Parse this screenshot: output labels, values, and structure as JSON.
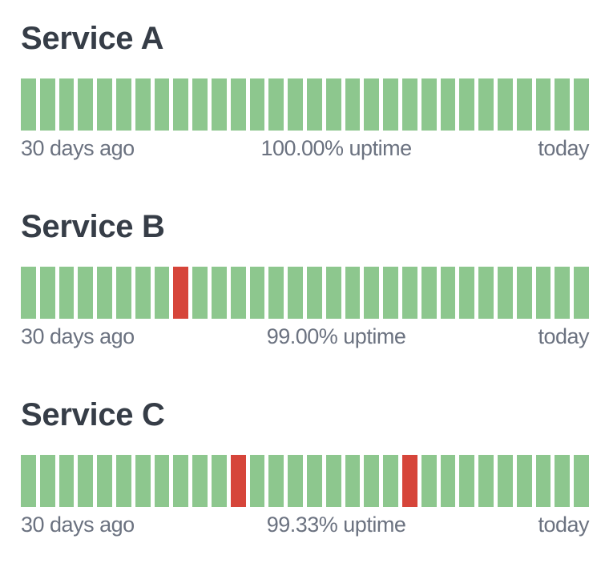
{
  "colors": {
    "up": "#8dc78e",
    "down": "#d6453a",
    "title": "#363d47",
    "label": "#6b7280",
    "background": "#ffffff"
  },
  "services": [
    {
      "name": "Service A",
      "left_label": "30 days ago",
      "uptime_label": "100.00% uptime",
      "right_label": "today",
      "days": [
        "up",
        "up",
        "up",
        "up",
        "up",
        "up",
        "up",
        "up",
        "up",
        "up",
        "up",
        "up",
        "up",
        "up",
        "up",
        "up",
        "up",
        "up",
        "up",
        "up",
        "up",
        "up",
        "up",
        "up",
        "up",
        "up",
        "up",
        "up",
        "up",
        "up"
      ]
    },
    {
      "name": "Service B",
      "left_label": "30 days ago",
      "uptime_label": "99.00% uptime",
      "right_label": "today",
      "days": [
        "up",
        "up",
        "up",
        "up",
        "up",
        "up",
        "up",
        "up",
        "down",
        "up",
        "up",
        "up",
        "up",
        "up",
        "up",
        "up",
        "up",
        "up",
        "up",
        "up",
        "up",
        "up",
        "up",
        "up",
        "up",
        "up",
        "up",
        "up",
        "up",
        "up"
      ]
    },
    {
      "name": "Service C",
      "left_label": "30 days ago",
      "uptime_label": "99.33% uptime",
      "right_label": "today",
      "days": [
        "up",
        "up",
        "up",
        "up",
        "up",
        "up",
        "up",
        "up",
        "up",
        "up",
        "up",
        "down",
        "up",
        "up",
        "up",
        "up",
        "up",
        "up",
        "up",
        "up",
        "down",
        "up",
        "up",
        "up",
        "up",
        "up",
        "up",
        "up",
        "up",
        "up"
      ]
    }
  ]
}
